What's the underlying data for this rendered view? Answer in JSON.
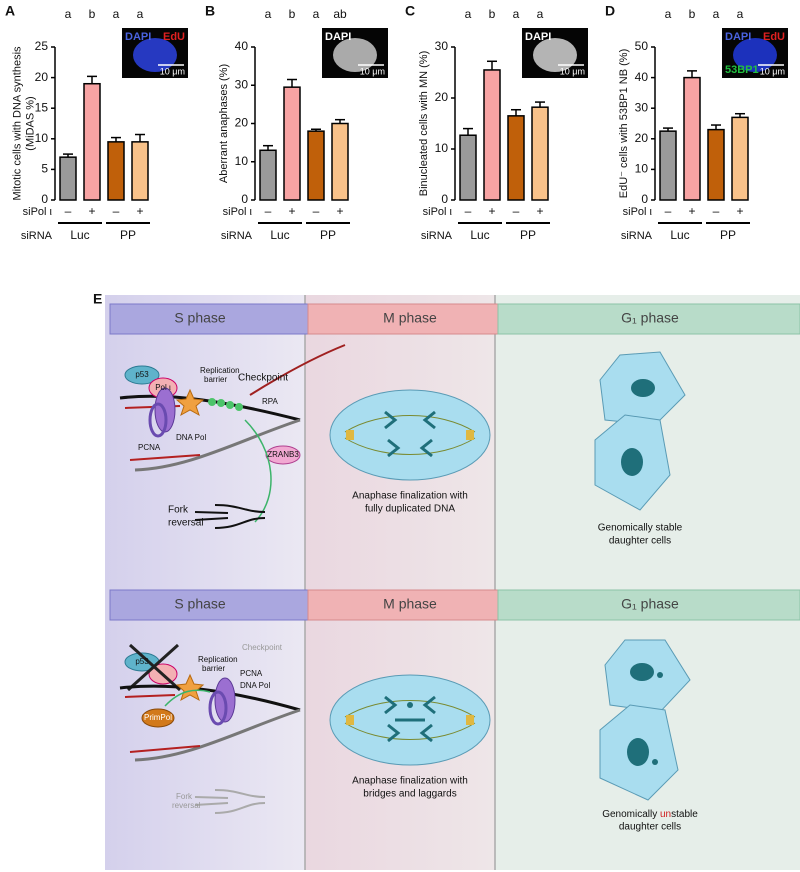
{
  "chart_data": [
    {
      "type": "bar",
      "label": "A",
      "ylabel": [
        "Mitotic cells with DNA synthesis",
        "(MiDAS %)"
      ],
      "values": [
        7,
        19,
        9.5,
        9.5
      ],
      "errors": [
        0.5,
        1.2,
        0.7,
        1.2
      ],
      "annotations": [
        "a",
        "b",
        "a",
        "a"
      ],
      "colors": [
        "#9a9a9a",
        "#f7a3a3",
        "#c0600a",
        "#f9c28a"
      ],
      "ylim": [
        0,
        25
      ],
      "yticks": [
        0,
        5,
        10,
        15,
        20,
        25
      ],
      "treatment_label": "siPol ι",
      "treatment": [
        "–",
        "+",
        "–",
        "+"
      ],
      "group_label": "siRNA",
      "groups": [
        "Luc",
        "PP"
      ],
      "inset_color": "#2a3fd6",
      "inset_labels": [
        {
          "text": "DAPI",
          "color": "#4a63e0"
        },
        {
          "text": "EdU",
          "color": "#e02020"
        }
      ],
      "scale": "10 μm"
    },
    {
      "type": "bar",
      "label": "B",
      "ylabel": [
        "Aberrant anaphases (%)"
      ],
      "values": [
        13,
        29.5,
        18,
        20
      ],
      "errors": [
        1.2,
        2,
        0.5,
        1
      ],
      "annotations": [
        "a",
        "b",
        "a",
        "ab"
      ],
      "colors": [
        "#9a9a9a",
        "#f7a3a3",
        "#c0600a",
        "#f9c28a"
      ],
      "ylim": [
        0,
        40
      ],
      "yticks": [
        0,
        10,
        20,
        30,
        40
      ],
      "treatment_label": "siPol ι",
      "treatment": [
        "–",
        "+",
        "–",
        "+"
      ],
      "group_label": "siRNA",
      "groups": [
        "Luc",
        "PP"
      ],
      "inset_color": "#bdbdbd",
      "inset_labels": [
        {
          "text": "DAPI",
          "color": "#ffffff"
        }
      ],
      "scale": "10 μm"
    },
    {
      "type": "bar",
      "label": "C",
      "ylabel": [
        "Binucleated cells with MN (%)"
      ],
      "values": [
        12.7,
        25.5,
        16.5,
        18.2
      ],
      "errors": [
        1.3,
        1.7,
        1.2,
        1
      ],
      "annotations": [
        "a",
        "b",
        "a",
        "a"
      ],
      "colors": [
        "#9a9a9a",
        "#f7a3a3",
        "#c0600a",
        "#f9c28a"
      ],
      "ylim": [
        0,
        30
      ],
      "yticks": [
        0,
        10,
        20,
        30
      ],
      "treatment_label": "siPol ι",
      "treatment": [
        "–",
        "+",
        "–",
        "+"
      ],
      "group_label": "siRNA",
      "groups": [
        "Luc",
        "PP"
      ],
      "inset_color": "#c8c8c8",
      "inset_labels": [
        {
          "text": "DAPI",
          "color": "#ffffff"
        }
      ],
      "scale": "10 μm"
    },
    {
      "type": "bar",
      "label": "D",
      "ylabel": [
        "EdU⁻ cells with 53BP1 NB (%)"
      ],
      "values": [
        22.5,
        40,
        23,
        27
      ],
      "errors": [
        1,
        2.2,
        1.5,
        1.2
      ],
      "annotations": [
        "a",
        "b",
        "a",
        "a"
      ],
      "colors": [
        "#9a9a9a",
        "#f7a3a3",
        "#c0600a",
        "#f9c28a"
      ],
      "ylim": [
        0,
        50
      ],
      "yticks": [
        0,
        10,
        20,
        30,
        40,
        50
      ],
      "treatment_label": "siPol ι",
      "treatment": [
        "–",
        "+",
        "–",
        "+"
      ],
      "group_label": "siRNA",
      "groups": [
        "Luc",
        "PP"
      ],
      "inset_color": "#1f36d0",
      "inset_labels": [
        {
          "text": "DAPI",
          "color": "#4a63e0"
        },
        {
          "text": "EdU",
          "color": "#e02020"
        },
        {
          "text": "53BP1",
          "color": "#22c040"
        }
      ],
      "scale": "10 μm"
    }
  ],
  "diagram": {
    "label": "E",
    "rows": [
      {
        "phases": [
          "S phase",
          "M phase",
          "G₁ phase"
        ],
        "p53": "p53",
        "pol": "Pol ι",
        "checkpoint": "Checkpoint",
        "barrier": [
          "Replication",
          "barrier"
        ],
        "rpa": "RPA",
        "dna_pol": "DNA Pol",
        "pcna": "PCNA",
        "zranb3": "ZRANB3",
        "fork": [
          "Fork",
          "reversal"
        ],
        "mitosis": [
          "Anaphase finalization with",
          "fully duplicated DNA"
        ],
        "outcome": [
          "Genomically stable",
          "daughter cells"
        ]
      },
      {
        "phases": [
          "S phase",
          "M phase",
          "G₁ phase"
        ],
        "p53": "p53",
        "checkpoint": "Checkpoint",
        "barrier": [
          "Replication",
          "barrier"
        ],
        "pcna": "PCNA",
        "dna_pol": "DNA Pol",
        "primpol": "PrimPol",
        "fork": [
          "Fork",
          "reversal"
        ],
        "mitosis": [
          "Anaphase finalization with",
          "bridges and laggards"
        ],
        "outcome_parts": [
          "Genomically ",
          "un",
          "stable"
        ],
        "outcome_line2": "daughter cells"
      }
    ]
  }
}
